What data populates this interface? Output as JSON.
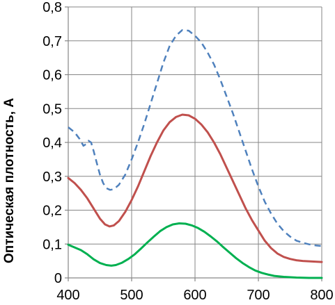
{
  "chart_data": {
    "type": "line",
    "title": "",
    "xlabel": "",
    "ylabel": "Оптическая плотность, А",
    "xlim": [
      400,
      800
    ],
    "ylim": [
      0,
      0.8
    ],
    "x_ticks": [
      "400",
      "500",
      "600",
      "700",
      "800"
    ],
    "y_ticks": [
      "0",
      "0,1",
      "0,2",
      "0,3",
      "0,4",
      "0,5",
      "0,6",
      "0,7",
      "0,8"
    ],
    "grid": true,
    "legend": "none",
    "series": [
      {
        "color": "#4f81bd",
        "style": "dashed",
        "points": [
          [
            400,
            0.445
          ],
          [
            410,
            0.43
          ],
          [
            418,
            0.41
          ],
          [
            424,
            0.39
          ],
          [
            428,
            0.395
          ],
          [
            432,
            0.405
          ],
          [
            436,
            0.4
          ],
          [
            440,
            0.375
          ],
          [
            445,
            0.34
          ],
          [
            450,
            0.305
          ],
          [
            455,
            0.28
          ],
          [
            460,
            0.265
          ],
          [
            466,
            0.26
          ],
          [
            472,
            0.262
          ],
          [
            480,
            0.275
          ],
          [
            490,
            0.305
          ],
          [
            500,
            0.35
          ],
          [
            510,
            0.4
          ],
          [
            520,
            0.455
          ],
          [
            530,
            0.515
          ],
          [
            540,
            0.575
          ],
          [
            550,
            0.635
          ],
          [
            560,
            0.685
          ],
          [
            570,
            0.715
          ],
          [
            580,
            0.732
          ],
          [
            590,
            0.73
          ],
          [
            600,
            0.715
          ],
          [
            610,
            0.695
          ],
          [
            620,
            0.665
          ],
          [
            630,
            0.63
          ],
          [
            640,
            0.585
          ],
          [
            650,
            0.535
          ],
          [
            660,
            0.485
          ],
          [
            670,
            0.43
          ],
          [
            680,
            0.375
          ],
          [
            690,
            0.32
          ],
          [
            700,
            0.27
          ],
          [
            710,
            0.225
          ],
          [
            720,
            0.19
          ],
          [
            730,
            0.16
          ],
          [
            740,
            0.138
          ],
          [
            750,
            0.122
          ],
          [
            760,
            0.11
          ],
          [
            770,
            0.104
          ],
          [
            780,
            0.099
          ],
          [
            790,
            0.096
          ],
          [
            800,
            0.094
          ]
        ]
      },
      {
        "color": "#c0504d",
        "style": "solid",
        "points": [
          [
            400,
            0.295
          ],
          [
            410,
            0.28
          ],
          [
            420,
            0.26
          ],
          [
            430,
            0.235
          ],
          [
            440,
            0.205
          ],
          [
            450,
            0.175
          ],
          [
            458,
            0.158
          ],
          [
            465,
            0.152
          ],
          [
            472,
            0.155
          ],
          [
            480,
            0.168
          ],
          [
            490,
            0.195
          ],
          [
            500,
            0.23
          ],
          [
            510,
            0.27
          ],
          [
            520,
            0.315
          ],
          [
            530,
            0.36
          ],
          [
            540,
            0.4
          ],
          [
            550,
            0.435
          ],
          [
            560,
            0.46
          ],
          [
            570,
            0.475
          ],
          [
            580,
            0.482
          ],
          [
            590,
            0.48
          ],
          [
            600,
            0.47
          ],
          [
            610,
            0.453
          ],
          [
            620,
            0.43
          ],
          [
            630,
            0.4
          ],
          [
            640,
            0.365
          ],
          [
            650,
            0.325
          ],
          [
            660,
            0.285
          ],
          [
            670,
            0.245
          ],
          [
            680,
            0.205
          ],
          [
            690,
            0.17
          ],
          [
            700,
            0.14
          ],
          [
            710,
            0.11
          ],
          [
            720,
            0.088
          ],
          [
            730,
            0.072
          ],
          [
            740,
            0.062
          ],
          [
            750,
            0.056
          ],
          [
            760,
            0.052
          ],
          [
            770,
            0.05
          ],
          [
            780,
            0.049
          ],
          [
            790,
            0.048
          ],
          [
            800,
            0.047
          ]
        ]
      },
      {
        "color": "#00b050",
        "style": "solid",
        "points": [
          [
            400,
            0.098
          ],
          [
            410,
            0.09
          ],
          [
            420,
            0.082
          ],
          [
            430,
            0.07
          ],
          [
            440,
            0.055
          ],
          [
            450,
            0.044
          ],
          [
            460,
            0.038
          ],
          [
            468,
            0.036
          ],
          [
            475,
            0.038
          ],
          [
            485,
            0.045
          ],
          [
            495,
            0.056
          ],
          [
            505,
            0.07
          ],
          [
            515,
            0.087
          ],
          [
            525,
            0.105
          ],
          [
            535,
            0.122
          ],
          [
            545,
            0.138
          ],
          [
            555,
            0.15
          ],
          [
            565,
            0.158
          ],
          [
            575,
            0.161
          ],
          [
            585,
            0.16
          ],
          [
            595,
            0.155
          ],
          [
            605,
            0.147
          ],
          [
            615,
            0.136
          ],
          [
            625,
            0.122
          ],
          [
            635,
            0.107
          ],
          [
            645,
            0.09
          ],
          [
            655,
            0.074
          ],
          [
            665,
            0.058
          ],
          [
            675,
            0.044
          ],
          [
            685,
            0.032
          ],
          [
            695,
            0.022
          ],
          [
            705,
            0.015
          ],
          [
            715,
            0.01
          ],
          [
            725,
            0.006
          ],
          [
            740,
            0.003
          ],
          [
            760,
            0.001
          ],
          [
            780,
            0.0
          ],
          [
            800,
            0.0
          ]
        ]
      }
    ]
  }
}
